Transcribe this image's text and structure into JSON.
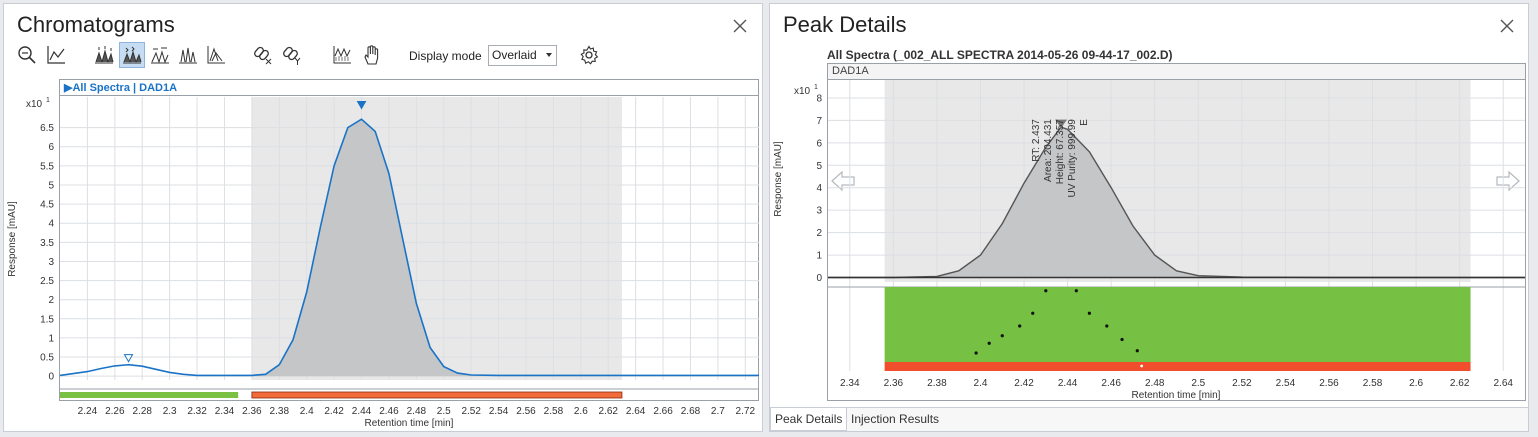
{
  "left": {
    "title": "Chromatograms",
    "toolbar": {
      "icons": [
        "zoom-out-icon",
        "autoscale-icon",
        "peak-labels-icon",
        "all-peaks-icon",
        "integration-icon",
        "overlay-traces-icon",
        "stacked-traces-icon",
        "link-x-icon",
        "link-y-icon",
        "spectrum-icon",
        "pan-hand-icon"
      ],
      "display_mode_label": "Display mode",
      "display_mode_value": "Overlaid",
      "settings_icon": "gear-icon"
    },
    "trace_header": "All Spectra | DAD1A",
    "exponent": "x10",
    "exponent_power": "1",
    "y_label": "Response [mAU]",
    "x_label": "Retention time [min]",
    "colors": {
      "trace": "#1a73c6",
      "highlight": "#e8e8e8",
      "fill": "#c4c6c8",
      "green_bar": "#7ac143",
      "red_bar": "#f26b3a"
    }
  },
  "right": {
    "title": "Peak Details",
    "subtitle": "All Spectra (_002_ALL SPECTRA 2014-05-26 09-44-17_002.D)",
    "trace_header": "DAD1A",
    "exponent": "x10",
    "exponent_power": "1",
    "y_label": "Response [mAU]",
    "x_label": "Retention time [min]",
    "peak_annotation": [
      "RT: 2.437",
      "Area: 204.431",
      "Height: 67.357",
      "UV Purity: 999.99"
    ],
    "peak_flag": "E",
    "tabs": [
      "Peak Details",
      "Injection Results"
    ],
    "active_tab": 0,
    "colors": {
      "purity_good": "#76c043",
      "purity_bad": "#f04e2c",
      "trace": "#555555",
      "fill": "#c4c6c8"
    }
  },
  "chart_data": [
    {
      "type": "area",
      "title": "All Spectra | DAD1A",
      "xlabel": "Retention time [min]",
      "ylabel": "Response [mAU]",
      "y_multiplier": "x10^1",
      "xlim": [
        2.22,
        2.73
      ],
      "ylim": [
        -0.1,
        7.3
      ],
      "x_ticks": [
        "2.24",
        "2.26",
        "2.28",
        "2.3",
        "2.32",
        "2.34",
        "2.36",
        "2.38",
        "2.4",
        "2.42",
        "2.44",
        "2.46",
        "2.48",
        "2.5",
        "2.52",
        "2.54",
        "2.56",
        "2.58",
        "2.6",
        "2.62",
        "2.64",
        "2.66",
        "2.68",
        "2.7",
        "2.72"
      ],
      "y_ticks": [
        "0",
        "0.5",
        "1",
        "1.5",
        "2",
        "2.5",
        "3",
        "3.5",
        "4",
        "4.5",
        "5",
        "5.5",
        "6",
        "6.5"
      ],
      "highlight_range": [
        2.36,
        2.63
      ],
      "segments": [
        {
          "status": "green",
          "x": [
            2.22,
            2.35
          ]
        },
        {
          "status": "red",
          "x": [
            2.36,
            2.63
          ]
        }
      ],
      "markers": [
        {
          "x": 2.27,
          "y": 0.38,
          "kind": "open-triangle"
        },
        {
          "x": 2.44,
          "y": 7.0,
          "kind": "filled-triangle"
        }
      ],
      "series": [
        {
          "x": [
            2.22,
            2.24,
            2.25,
            2.26,
            2.27,
            2.28,
            2.29,
            2.3,
            2.31,
            2.32,
            2.34,
            2.36,
            2.37,
            2.38,
            2.39,
            2.4,
            2.41,
            2.42,
            2.43,
            2.44,
            2.45,
            2.46,
            2.47,
            2.48,
            2.49,
            2.5,
            2.51,
            2.52,
            2.54,
            2.56,
            2.6,
            2.64,
            2.68,
            2.73
          ],
          "values": [
            0.02,
            0.12,
            0.2,
            0.27,
            0.3,
            0.26,
            0.18,
            0.1,
            0.05,
            0.02,
            0.02,
            0.02,
            0.05,
            0.3,
            0.95,
            2.2,
            3.9,
            5.5,
            6.5,
            6.72,
            6.4,
            5.3,
            3.6,
            1.9,
            0.75,
            0.25,
            0.08,
            0.03,
            0.02,
            0.02,
            0.02,
            0.02,
            0.02,
            0.02
          ]
        }
      ]
    },
    {
      "type": "area",
      "title": "DAD1A",
      "xlabel": "Retention time [min]",
      "ylabel": "Response [mAU]",
      "y_multiplier": "x10^1",
      "xlim": [
        2.33,
        2.65
      ],
      "ylim": [
        -0.2,
        8.8
      ],
      "x_ticks": [
        "2.34",
        "2.36",
        "2.38",
        "2.4",
        "2.42",
        "2.44",
        "2.46",
        "2.48",
        "2.5",
        "2.52",
        "2.54",
        "2.56",
        "2.58",
        "2.6",
        "2.62",
        "2.64"
      ],
      "y_ticks": [
        "0",
        "1",
        "2",
        "3",
        "4",
        "5",
        "6",
        "7",
        "8"
      ],
      "highlight_range": [
        2.356,
        2.625
      ],
      "series": [
        {
          "x": [
            2.33,
            2.36,
            2.38,
            2.39,
            2.4,
            2.41,
            2.42,
            2.43,
            2.437,
            2.44,
            2.45,
            2.46,
            2.47,
            2.48,
            2.49,
            2.5,
            2.52,
            2.56,
            2.6,
            2.65
          ],
          "values": [
            0,
            0,
            0.05,
            0.3,
            1.0,
            2.4,
            4.2,
            5.8,
            6.7,
            6.6,
            5.6,
            4.0,
            2.3,
            1.0,
            0.3,
            0.08,
            0.02,
            0,
            0,
            0
          ]
        }
      ],
      "purity_points": {
        "x": [
          2.398,
          2.404,
          2.41,
          2.418,
          2.424,
          2.43,
          2.444,
          2.45,
          2.458,
          2.465,
          2.472
        ],
        "y": [
          0.12,
          0.25,
          0.35,
          0.48,
          0.65,
          0.95,
          0.95,
          0.65,
          0.48,
          0.3,
          0.15
        ]
      }
    }
  ]
}
